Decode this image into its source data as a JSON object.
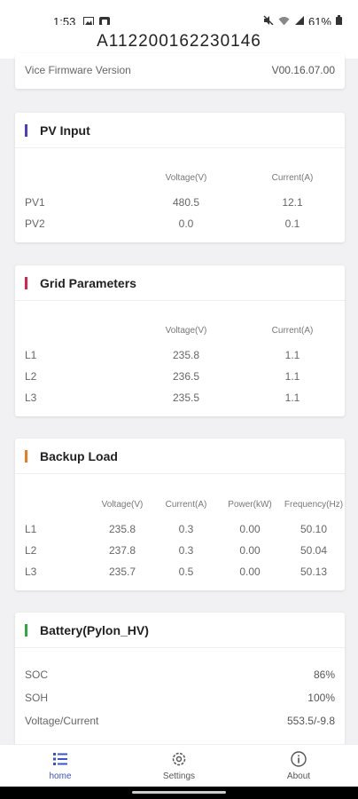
{
  "status_bar": {
    "time": "1:53",
    "battery": "61%",
    "icons": [
      "image-icon",
      "app-icon",
      "mute-icon",
      "wifi-icon",
      "signal-icon",
      "battery-icon"
    ]
  },
  "header": {
    "title": "A112200162230146"
  },
  "firmware": {
    "label": "Vice Firmware Version",
    "value": "V00.16.07.00"
  },
  "pv_input": {
    "title": "PV Input",
    "accent": "#4a3ccf",
    "columns": [
      "Voltage(V)",
      "Current(A)"
    ],
    "rows": [
      {
        "name": "PV1",
        "voltage": "480.5",
        "current": "12.1"
      },
      {
        "name": "PV2",
        "voltage": "0.0",
        "current": "0.1"
      }
    ]
  },
  "grid": {
    "title": "Grid Parameters",
    "accent": "#e0204a",
    "columns": [
      "Voltage(V)",
      "Current(A)"
    ],
    "rows": [
      {
        "name": "L1",
        "voltage": "235.8",
        "current": "1.1"
      },
      {
        "name": "L2",
        "voltage": "236.5",
        "current": "1.1"
      },
      {
        "name": "L3",
        "voltage": "235.5",
        "current": "1.1"
      }
    ]
  },
  "backup": {
    "title": "Backup Load",
    "accent": "#f07a1a",
    "columns": [
      "Voltage(V)",
      "Current(A)",
      "Power(kW)",
      "Frequency(Hz)"
    ],
    "rows": [
      {
        "name": "L1",
        "voltage": "235.8",
        "current": "0.3",
        "power": "0.00",
        "freq": "50.10"
      },
      {
        "name": "L2",
        "voltage": "237.8",
        "current": "0.3",
        "power": "0.00",
        "freq": "50.04"
      },
      {
        "name": "L3",
        "voltage": "235.7",
        "current": "0.5",
        "power": "0.00",
        "freq": "50.13"
      }
    ]
  },
  "battery": {
    "title": "Battery(Pylon_HV)",
    "accent": "#2faa3a",
    "items": [
      {
        "label": "SOC",
        "value": "86%"
      },
      {
        "label": "SOH",
        "value": "100%"
      },
      {
        "label": "Voltage/Current",
        "value": "553.5/-9.8"
      }
    ]
  },
  "tabs": [
    {
      "label": "home",
      "icon": "list-icon",
      "active": true
    },
    {
      "label": "Settings",
      "icon": "gear-icon",
      "active": false
    },
    {
      "label": "About",
      "icon": "info-icon",
      "active": false
    }
  ],
  "colors": {
    "active_tab": "#3b55c4"
  }
}
